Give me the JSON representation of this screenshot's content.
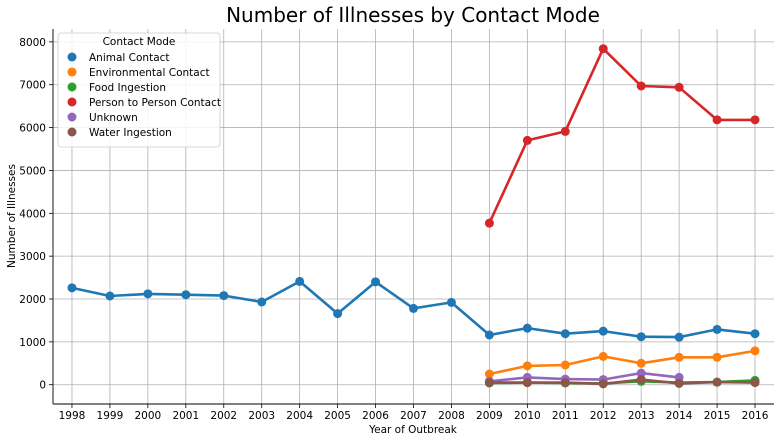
{
  "chart_data": {
    "type": "line",
    "title": "Number of Illnesses by Contact Mode",
    "xlabel": "Year of Outbreak",
    "ylabel": "Number of Illnesses",
    "x": [
      "1998",
      "1999",
      "2000",
      "2001",
      "2002",
      "2003",
      "2004",
      "2005",
      "2006",
      "2007",
      "2008",
      "2009",
      "2010",
      "2011",
      "2012",
      "2013",
      "2014",
      "2015",
      "2016"
    ],
    "ylim": [
      -450,
      8300
    ],
    "yticks": [
      0,
      1000,
      2000,
      3000,
      4000,
      5000,
      6000,
      7000,
      8000
    ],
    "grid": true,
    "legend": {
      "title": "Contact Mode",
      "placement": "top-left"
    },
    "series": [
      {
        "name": "Animal Contact",
        "color": "#1f77b4",
        "values": [
          2260,
          2070,
          2120,
          2100,
          2080,
          1930,
          2410,
          1660,
          2400,
          1780,
          1920,
          1160,
          1320,
          1190,
          1250,
          1120,
          1110,
          1290,
          1190
        ]
      },
      {
        "name": "Environmental Contact",
        "color": "#ff7f0e",
        "values": [
          null,
          null,
          null,
          null,
          null,
          null,
          null,
          null,
          null,
          null,
          null,
          250,
          440,
          460,
          660,
          500,
          640,
          640,
          790
        ]
      },
      {
        "name": "Food Ingestion",
        "color": "#2ca02c",
        "values": [
          null,
          null,
          null,
          null,
          null,
          null,
          null,
          null,
          null,
          null,
          null,
          40,
          50,
          40,
          30,
          80,
          50,
          60,
          100
        ]
      },
      {
        "name": "Person to Person Contact",
        "color": "#d62728",
        "values": [
          null,
          null,
          null,
          null,
          null,
          null,
          null,
          null,
          null,
          null,
          null,
          3770,
          5700,
          5910,
          7840,
          6970,
          6940,
          6180,
          6180
        ]
      },
      {
        "name": "Unknown",
        "color": "#9467bd",
        "values": [
          null,
          null,
          null,
          null,
          null,
          null,
          null,
          null,
          null,
          null,
          null,
          80,
          170,
          130,
          120,
          270,
          170,
          null,
          null
        ]
      },
      {
        "name": "Water Ingestion",
        "color": "#8c564b",
        "values": [
          null,
          null,
          null,
          null,
          null,
          null,
          null,
          null,
          null,
          null,
          null,
          50,
          50,
          50,
          20,
          120,
          30,
          60,
          50
        ]
      }
    ]
  }
}
